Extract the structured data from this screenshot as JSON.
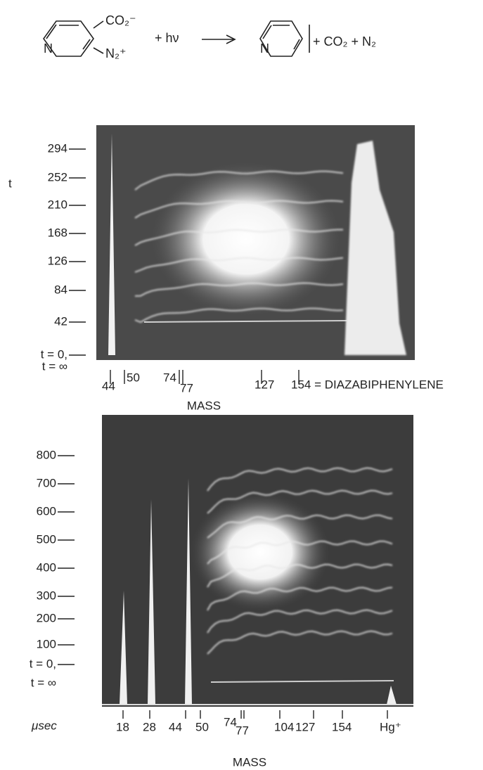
{
  "reaction": {
    "reactant_carboxylate": "CO₂⁻",
    "reactant_diazonium": "N₂⁺",
    "reactant_ring_n": "N",
    "light": "+ hν",
    "product_ring_n": "N",
    "byproducts": "+ CO₂ + N₂"
  },
  "panel_1": {
    "y_axis_label": "t",
    "y_labels": [
      "294",
      "252",
      "210",
      "168",
      "126",
      "84",
      "42",
      "t = 0,"
    ],
    "y_label_inf": "t = ∞",
    "mass_labels": [
      "44",
      "50",
      "74",
      "77",
      "127",
      "154 = DIAZABIPHENYLENE"
    ],
    "x_axis_label": "MASS"
  },
  "panel_2": {
    "y_labels": [
      "800",
      "700",
      "600",
      "500",
      "400",
      "300",
      "200",
      "100",
      "t = 0,"
    ],
    "y_label_inf": "t = ∞",
    "unit": "μsec",
    "mass_labels": [
      "18",
      "28",
      "44",
      "50",
      "74",
      "77",
      "104",
      "127",
      "154",
      "Hg⁺"
    ],
    "x_axis_label": "MASS"
  }
}
